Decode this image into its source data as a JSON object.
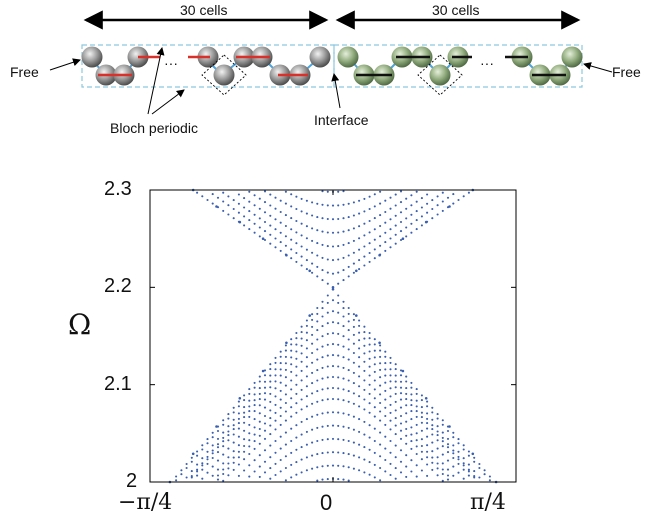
{
  "schematic": {
    "left_count_label": "30 cells",
    "right_count_label": "30 cells",
    "free_left": "Free",
    "free_right": "Free",
    "bloch_label": "Bloch periodic",
    "interface_label": "Interface",
    "ellipsis_left": "···",
    "ellipsis_right": "···",
    "colors": {
      "left_bond": "#d8302b",
      "right_bond": "#111111",
      "left_bead": "#8e8e8e",
      "right_bead": "#8fa97e",
      "dashed_box": "#8cc8e0"
    }
  },
  "chart_data": {
    "type": "scatter",
    "title": "",
    "xlabel": "",
    "ylabel": "Ω",
    "xlim": [
      -0.7854,
      0.7854
    ],
    "ylim": [
      2.0,
      2.3
    ],
    "x_tick_labels": [
      "−π/4",
      "0",
      "π/4"
    ],
    "x_tick_values": [
      -0.7854,
      0,
      0.7854
    ],
    "y_tick_labels": [
      "2",
      "2.1",
      "2.2",
      "2.3"
    ],
    "y_tick_values": [
      2.0,
      2.1,
      2.2,
      2.3
    ],
    "grid": false,
    "marker_color": "#3a5fb0",
    "series": [
      {
        "values": [
          [
            -0.6,
            2.3
          ],
          [
            -0.5,
            2.283
          ],
          [
            -0.4,
            2.267
          ],
          [
            -0.3,
            2.25
          ],
          [
            -0.2,
            2.233
          ],
          [
            -0.1,
            2.217
          ],
          [
            0.0,
            2.2
          ],
          [
            0.1,
            2.217
          ],
          [
            0.2,
            2.233
          ],
          [
            0.3,
            2.25
          ],
          [
            0.4,
            2.267
          ],
          [
            0.5,
            2.283
          ],
          [
            0.6,
            2.3
          ]
        ]
      },
      {
        "values": [
          [
            -0.7,
            2.0
          ],
          [
            -0.6,
            2.029
          ],
          [
            -0.5,
            2.057
          ],
          [
            -0.4,
            2.086
          ],
          [
            -0.3,
            2.114
          ],
          [
            -0.2,
            2.143
          ],
          [
            -0.1,
            2.171
          ],
          [
            0.0,
            2.198
          ],
          [
            0.1,
            2.171
          ],
          [
            0.2,
            2.143
          ],
          [
            0.3,
            2.114
          ],
          [
            0.4,
            2.086
          ],
          [
            0.5,
            2.057
          ],
          [
            0.6,
            2.029
          ],
          [
            0.7,
            2.0
          ]
        ]
      }
    ]
  }
}
